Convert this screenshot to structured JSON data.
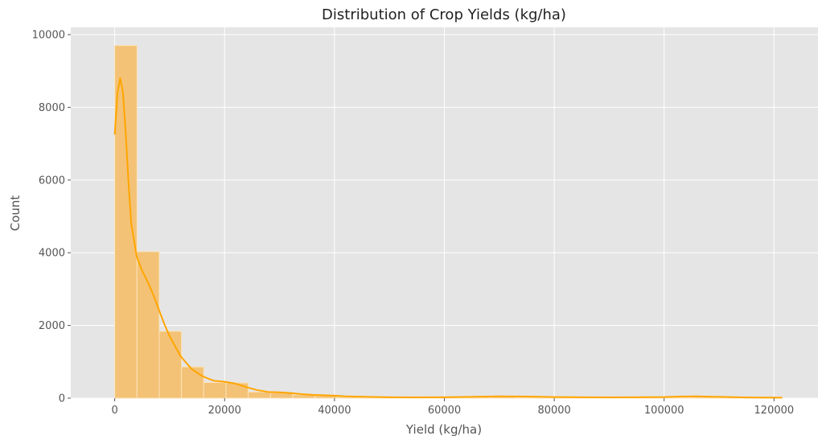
{
  "chart_data": {
    "type": "bar",
    "title": "Distribution of Crop Yields (kg/ha)",
    "xlabel": "Yield (kg/ha)",
    "ylabel": "Count",
    "xlim": [
      -8000,
      128000
    ],
    "ylim": [
      0,
      10200
    ],
    "x_ticks": [
      0,
      20000,
      40000,
      60000,
      80000,
      100000,
      120000
    ],
    "y_ticks": [
      0,
      2000,
      4000,
      6000,
      8000,
      10000
    ],
    "grid": true,
    "bin_width": 4050,
    "bins": [
      {
        "start": 0,
        "count": 9700
      },
      {
        "start": 4050,
        "count": 4030
      },
      {
        "start": 8100,
        "count": 1840
      },
      {
        "start": 12150,
        "count": 860
      },
      {
        "start": 16200,
        "count": 430
      },
      {
        "start": 20250,
        "count": 420
      },
      {
        "start": 24300,
        "count": 170
      },
      {
        "start": 28350,
        "count": 150
      },
      {
        "start": 32400,
        "count": 90
      },
      {
        "start": 36450,
        "count": 70
      },
      {
        "start": 40500,
        "count": 30
      },
      {
        "start": 44550,
        "count": 20
      },
      {
        "start": 48600,
        "count": 15
      },
      {
        "start": 52650,
        "count": 10
      },
      {
        "start": 56700,
        "count": 10
      },
      {
        "start": 60750,
        "count": 15
      },
      {
        "start": 64800,
        "count": 30
      },
      {
        "start": 68850,
        "count": 40
      },
      {
        "start": 72900,
        "count": 25
      },
      {
        "start": 76950,
        "count": 15
      },
      {
        "start": 81000,
        "count": 10
      },
      {
        "start": 85050,
        "count": 10
      },
      {
        "start": 89100,
        "count": 8
      },
      {
        "start": 93150,
        "count": 8
      },
      {
        "start": 97200,
        "count": 10
      },
      {
        "start": 101250,
        "count": 25
      },
      {
        "start": 105300,
        "count": 30
      },
      {
        "start": 109350,
        "count": 15
      },
      {
        "start": 113400,
        "count": 8
      },
      {
        "start": 117450,
        "count": 5
      }
    ],
    "kde": {
      "x": [
        0,
        500,
        1000,
        1500,
        2000,
        2500,
        3000,
        4000,
        5000,
        6000,
        7000,
        8000,
        9000,
        10000,
        12000,
        14000,
        16000,
        18000,
        20000,
        22000,
        24000,
        26000,
        28000,
        30000,
        32000,
        34000,
        36000,
        38000,
        40000,
        42000,
        46000,
        50000,
        55000,
        60000,
        65000,
        70000,
        75000,
        80000,
        85000,
        90000,
        95000,
        100000,
        103000,
        106000,
        110000,
        115000,
        121500
      ],
      "y": [
        7250,
        8400,
        8800,
        8400,
        7300,
        5950,
        4800,
        3900,
        3500,
        3200,
        2850,
        2450,
        2050,
        1700,
        1150,
        800,
        600,
        480,
        450,
        400,
        300,
        220,
        170,
        160,
        140,
        110,
        90,
        80,
        70,
        50,
        35,
        25,
        22,
        25,
        35,
        50,
        45,
        30,
        25,
        22,
        25,
        30,
        45,
        50,
        35,
        20,
        15
      ]
    },
    "colors": {
      "bar_fill": "#f3c276",
      "bar_edge": "#fbe3b8",
      "kde_line": "#ffa500",
      "plot_bg": "#e5e5e5",
      "grid": "#ffffff"
    }
  }
}
